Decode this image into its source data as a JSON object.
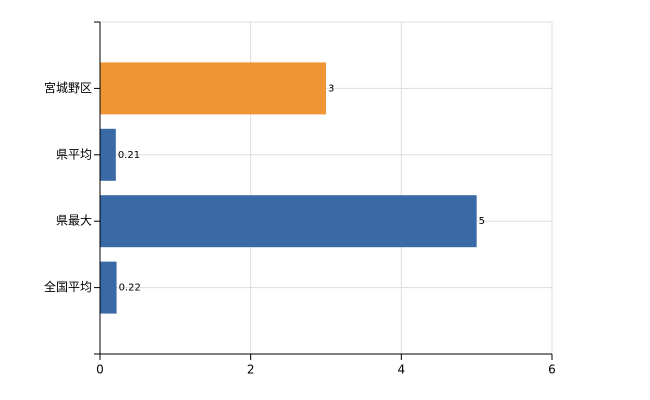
{
  "chart_data": {
    "type": "bar",
    "orientation": "horizontal",
    "categories": [
      "宮城野区",
      "県平均",
      "県最大",
      "全国平均"
    ],
    "values": [
      3,
      0.21,
      5,
      0.22
    ],
    "colors": [
      "#f09536",
      "#3a6aa6",
      "#3a6aa6",
      "#3a6aa6"
    ],
    "xlim": [
      0,
      6
    ],
    "xticks": [
      0,
      2,
      4,
      6
    ],
    "grid": true
  }
}
